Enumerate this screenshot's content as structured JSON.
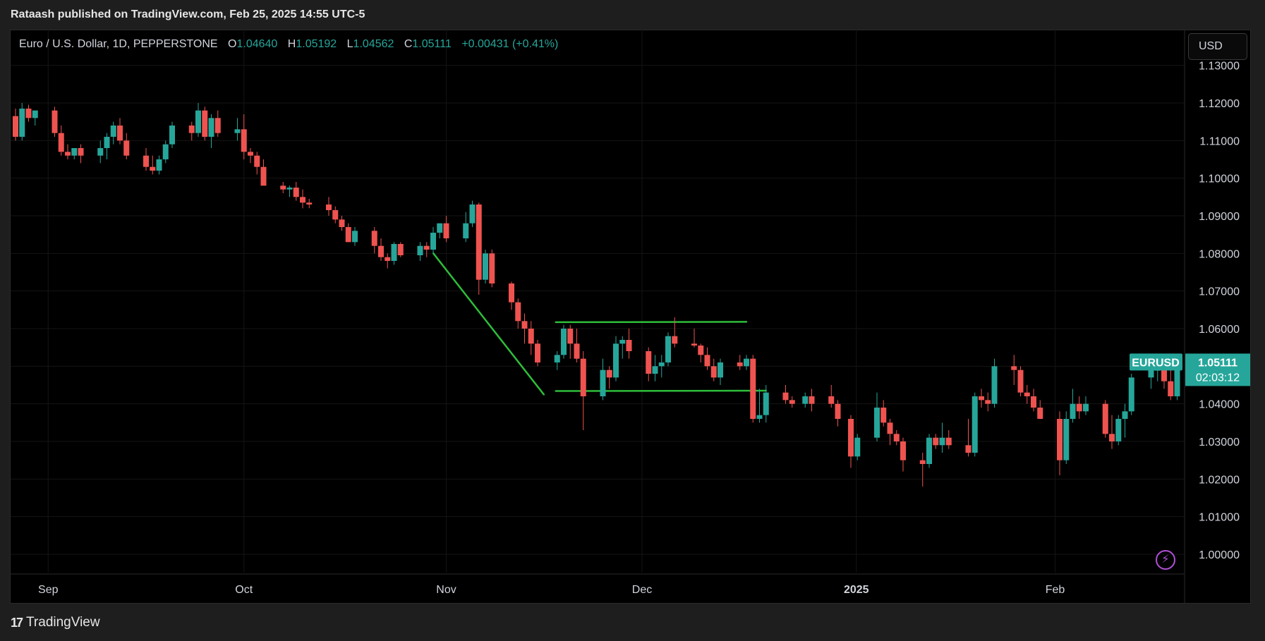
{
  "header": {
    "publisher_text": "Rataash published on TradingView.com, Feb 25, 2025 14:55 UTC-5"
  },
  "legend": {
    "symbol": "Euro / U.S. Dollar, 1D, PEPPERSTONE",
    "open_label": "O",
    "open": "1.04640",
    "high_label": "H",
    "high": "1.05192",
    "low_label": "L",
    "low": "1.04562",
    "close_label": "C",
    "close": "1.05111",
    "change": "+0.00431 (+0.41%)"
  },
  "currency_button": "USD",
  "price_axis": {
    "labels": [
      "1.13000",
      "1.12000",
      "1.11000",
      "1.10000",
      "1.09000",
      "1.08000",
      "1.07000",
      "1.06000",
      "1.05000",
      "1.04000",
      "1.03000",
      "1.02000",
      "1.01000",
      "1.00000"
    ]
  },
  "time_axis": {
    "labels": [
      "Sep",
      "Oct",
      "Nov",
      "Dec",
      "2025",
      "Feb"
    ]
  },
  "price_tag": {
    "symbol": "EURUSD",
    "price": "1.05111",
    "countdown": "02:03:12"
  },
  "brand": {
    "name": "TradingView"
  },
  "icons": {
    "flash": "lightning-icon",
    "logo": "tradingview-logo-icon"
  },
  "colors": {
    "up": "#26a69a",
    "down": "#ef5350",
    "trendline": "#2ebd3a",
    "background": "#000000",
    "alert": "#b14fd6"
  },
  "chart_data": {
    "type": "candlestick",
    "symbol": "EURUSD",
    "timeframe": "1D",
    "x_range": [
      "2024-08-26",
      "2025-02-25"
    ],
    "ylim": [
      0.99,
      1.14
    ],
    "grid": true,
    "candles": [
      [
        "08-27",
        1.1165,
        1.1185,
        1.11,
        1.111
      ],
      [
        "08-28",
        1.111,
        1.12,
        1.11,
        1.1185
      ],
      [
        "08-29",
        1.1185,
        1.1195,
        1.115,
        1.116
      ],
      [
        "08-30",
        1.116,
        1.118,
        1.114,
        1.118
      ],
      [
        "09-02",
        1.118,
        1.119,
        1.111,
        1.112
      ],
      [
        "09-03",
        1.112,
        1.114,
        1.106,
        1.107
      ],
      [
        "09-04",
        1.107,
        1.109,
        1.105,
        1.106
      ],
      [
        "09-05",
        1.106,
        1.108,
        1.105,
        1.108
      ],
      [
        "09-06",
        1.108,
        1.109,
        1.104,
        1.106
      ],
      [
        "09-09",
        1.106,
        1.11,
        1.104,
        1.108
      ],
      [
        "09-10",
        1.108,
        1.112,
        1.105,
        1.111
      ],
      [
        "09-11",
        1.111,
        1.115,
        1.109,
        1.114
      ],
      [
        "09-12",
        1.114,
        1.116,
        1.109,
        1.11
      ],
      [
        "09-13",
        1.11,
        1.112,
        1.105,
        1.106
      ],
      [
        "09-16",
        1.106,
        1.108,
        1.102,
        1.103
      ],
      [
        "09-17",
        1.103,
        1.106,
        1.101,
        1.102
      ],
      [
        "09-18",
        1.102,
        1.106,
        1.101,
        1.105
      ],
      [
        "09-19",
        1.105,
        1.11,
        1.104,
        1.109
      ],
      [
        "09-20",
        1.109,
        1.115,
        1.108,
        1.114
      ],
      [
        "09-23",
        1.114,
        1.115,
        1.11,
        1.112
      ],
      [
        "09-24",
        1.112,
        1.12,
        1.111,
        1.118
      ],
      [
        "09-25",
        1.118,
        1.119,
        1.11,
        1.111
      ],
      [
        "09-26",
        1.111,
        1.117,
        1.108,
        1.116
      ],
      [
        "09-27",
        1.116,
        1.118,
        1.111,
        1.112
      ],
      [
        "09-30",
        1.112,
        1.116,
        1.11,
        1.113
      ],
      [
        "10-01",
        1.113,
        1.117,
        1.105,
        1.107
      ],
      [
        "10-02",
        1.107,
        1.108,
        1.104,
        1.106
      ],
      [
        "10-03",
        1.106,
        1.107,
        1.101,
        1.103
      ],
      [
        "10-04",
        1.103,
        1.105,
        1.099,
        1.098
      ],
      [
        "10-07",
        1.098,
        1.099,
        1.096,
        1.097
      ],
      [
        "10-08",
        1.097,
        1.098,
        1.095,
        1.0975
      ],
      [
        "10-09",
        1.0975,
        1.099,
        1.094,
        1.095
      ],
      [
        "10-10",
        1.095,
        1.097,
        1.092,
        1.0935
      ],
      [
        "10-11",
        1.0935,
        1.0945,
        1.092,
        1.093
      ],
      [
        "10-14",
        1.093,
        1.095,
        1.09,
        1.0915
      ],
      [
        "10-15",
        1.0915,
        1.0925,
        1.088,
        1.089
      ],
      [
        "10-16",
        1.089,
        1.09,
        1.086,
        1.087
      ],
      [
        "10-17",
        1.087,
        1.088,
        1.083,
        1.083
      ],
      [
        "10-18",
        1.083,
        1.087,
        1.082,
        1.086
      ],
      [
        "10-21",
        1.086,
        1.087,
        1.08,
        1.082
      ],
      [
        "10-22",
        1.082,
        1.084,
        1.078,
        1.079
      ],
      [
        "10-23",
        1.079,
        1.08,
        1.076,
        1.078
      ],
      [
        "10-24",
        1.078,
        1.083,
        1.077,
        1.0825
      ],
      [
        "10-25",
        1.0825,
        1.083,
        1.079,
        1.0795
      ],
      [
        "10-28",
        1.0795,
        1.083,
        1.078,
        1.082
      ],
      [
        "10-29",
        1.082,
        1.083,
        1.079,
        1.081
      ],
      [
        "10-30",
        1.081,
        1.087,
        1.08,
        1.0855
      ],
      [
        "10-31",
        1.0855,
        1.088,
        1.084,
        1.088
      ],
      [
        "11-01",
        1.088,
        1.09,
        1.083,
        1.084
      ],
      [
        "11-04",
        1.084,
        1.091,
        1.083,
        1.088
      ],
      [
        "11-05",
        1.088,
        1.094,
        1.087,
        1.093
      ],
      [
        "11-06",
        1.093,
        1.0935,
        1.069,
        1.073
      ],
      [
        "11-07",
        1.073,
        1.081,
        1.072,
        1.08
      ],
      [
        "11-08",
        1.08,
        1.081,
        1.071,
        1.072
      ],
      [
        "11-11",
        1.072,
        1.0725,
        1.065,
        1.067
      ],
      [
        "11-12",
        1.067,
        1.068,
        1.06,
        1.062
      ],
      [
        "11-13",
        1.062,
        1.064,
        1.056,
        1.06
      ],
      [
        "11-14",
        1.06,
        1.062,
        1.053,
        1.056
      ],
      [
        "11-15",
        1.056,
        1.057,
        1.05,
        1.051
      ],
      [
        "11-18",
        1.051,
        1.054,
        1.049,
        1.053
      ],
      [
        "11-19",
        1.053,
        1.061,
        1.052,
        1.06
      ],
      [
        "11-20",
        1.06,
        1.061,
        1.052,
        1.056
      ],
      [
        "11-21",
        1.056,
        1.06,
        1.051,
        1.052
      ],
      [
        "11-22",
        1.052,
        1.054,
        1.033,
        1.042
      ],
      [
        "11-25",
        1.042,
        1.052,
        1.041,
        1.049
      ],
      [
        "11-26",
        1.049,
        1.05,
        1.044,
        1.047
      ],
      [
        "11-27",
        1.047,
        1.058,
        1.046,
        1.056
      ],
      [
        "11-28",
        1.056,
        1.058,
        1.052,
        1.057
      ],
      [
        "11-29",
        1.057,
        1.06,
        1.052,
        1.054
      ],
      [
        "12-02",
        1.054,
        1.055,
        1.046,
        1.048
      ],
      [
        "12-03",
        1.048,
        1.053,
        1.046,
        1.05
      ],
      [
        "12-04",
        1.05,
        1.053,
        1.047,
        1.051
      ],
      [
        "12-05",
        1.051,
        1.059,
        1.05,
        1.058
      ],
      [
        "12-06",
        1.058,
        1.063,
        1.055,
        1.056
      ],
      [
        "12-09",
        1.056,
        1.06,
        1.055,
        1.0555
      ],
      [
        "12-10",
        1.0555,
        1.056,
        1.051,
        1.053
      ],
      [
        "12-11",
        1.053,
        1.055,
        1.049,
        1.05
      ],
      [
        "12-12",
        1.05,
        1.052,
        1.046,
        1.047
      ],
      [
        "12-13",
        1.047,
        1.052,
        1.045,
        1.051
      ],
      [
        "12-16",
        1.051,
        1.053,
        1.049,
        1.05
      ],
      [
        "12-17",
        1.05,
        1.053,
        1.049,
        1.052
      ],
      [
        "12-18",
        1.052,
        1.053,
        1.035,
        1.036
      ],
      [
        "12-19",
        1.036,
        1.044,
        1.035,
        1.037
      ],
      [
        "12-20",
        1.037,
        1.045,
        1.035,
        1.043
      ],
      [
        "12-23",
        1.043,
        1.045,
        1.04,
        1.041
      ],
      [
        "12-24",
        1.041,
        1.042,
        1.039,
        1.04
      ],
      [
        "12-26",
        1.04,
        1.043,
        1.039,
        1.042
      ],
      [
        "12-27",
        1.042,
        1.044,
        1.038,
        1.04
      ],
      [
        "12-30",
        1.042,
        1.045,
        1.039,
        1.04
      ],
      [
        "12-31",
        1.04,
        1.041,
        1.034,
        1.036
      ],
      [
        "01-02",
        1.036,
        1.037,
        1.023,
        1.026
      ],
      [
        "01-03",
        1.026,
        1.032,
        1.025,
        1.031
      ],
      [
        "01-06",
        1.031,
        1.043,
        1.03,
        1.039
      ],
      [
        "01-07",
        1.039,
        1.041,
        1.034,
        1.035
      ],
      [
        "01-08",
        1.035,
        1.036,
        1.029,
        1.032
      ],
      [
        "01-09",
        1.032,
        1.033,
        1.029,
        1.03
      ],
      [
        "01-10",
        1.03,
        1.031,
        1.022,
        1.025
      ],
      [
        "01-13",
        1.025,
        1.027,
        1.018,
        1.024
      ],
      [
        "01-14",
        1.024,
        1.032,
        1.023,
        1.031
      ],
      [
        "01-15",
        1.031,
        1.032,
        1.028,
        1.029
      ],
      [
        "01-16",
        1.029,
        1.035,
        1.027,
        1.031
      ],
      [
        "01-17",
        1.031,
        1.033,
        1.028,
        1.029
      ],
      [
        "01-20",
        1.029,
        1.036,
        1.026,
        1.027
      ],
      [
        "01-21",
        1.027,
        1.043,
        1.026,
        1.042
      ],
      [
        "01-22",
        1.042,
        1.044,
        1.039,
        1.041
      ],
      [
        "01-23",
        1.041,
        1.043,
        1.038,
        1.04
      ],
      [
        "01-24",
        1.04,
        1.052,
        1.039,
        1.05
      ],
      [
        "01-27",
        1.05,
        1.053,
        1.045,
        1.049
      ],
      [
        "01-28",
        1.049,
        1.05,
        1.042,
        1.043
      ],
      [
        "01-29",
        1.043,
        1.045,
        1.04,
        1.042
      ],
      [
        "01-30",
        1.042,
        1.044,
        1.038,
        1.039
      ],
      [
        "01-31",
        1.039,
        1.041,
        1.036,
        1.036
      ],
      [
        "02-03",
        1.036,
        1.038,
        1.021,
        1.025
      ],
      [
        "02-04",
        1.025,
        1.038,
        1.024,
        1.036
      ],
      [
        "02-05",
        1.036,
        1.044,
        1.035,
        1.04
      ],
      [
        "02-06",
        1.04,
        1.042,
        1.036,
        1.038
      ],
      [
        "02-07",
        1.038,
        1.042,
        1.037,
        1.04
      ],
      [
        "02-10",
        1.04,
        1.041,
        1.031,
        1.032
      ],
      [
        "02-11",
        1.032,
        1.037,
        1.028,
        1.03
      ],
      [
        "02-12",
        1.03,
        1.037,
        1.029,
        1.036
      ],
      [
        "02-13",
        1.036,
        1.04,
        1.031,
        1.038
      ],
      [
        "02-14",
        1.038,
        1.048,
        1.037,
        1.047
      ],
      [
        "02-17",
        1.047,
        1.052,
        1.044,
        1.049
      ],
      [
        "02-18",
        1.049,
        1.05,
        1.046,
        1.049
      ],
      [
        "02-19",
        1.049,
        1.05,
        1.044,
        1.046
      ],
      [
        "02-20",
        1.046,
        1.05,
        1.041,
        1.042
      ],
      [
        "02-21",
        1.042,
        1.053,
        1.041,
        1.051
      ],
      [
        "02-24",
        1.048,
        1.052,
        1.046,
        1.047
      ],
      [
        "02-25",
        1.0464,
        1.05192,
        1.04562,
        1.05111
      ]
    ],
    "annotations": [
      {
        "type": "trendline",
        "from": [
          "10-31",
          1.08
        ],
        "to": [
          "11-18",
          1.0425
        ]
      },
      {
        "type": "horizontal",
        "from": [
          "11-18",
          1.0617
        ],
        "to": [
          "12-17",
          1.0618
        ]
      },
      {
        "type": "horizontal",
        "from": [
          "11-18",
          1.0434
        ],
        "to": [
          "12-20",
          1.0435
        ]
      }
    ]
  }
}
